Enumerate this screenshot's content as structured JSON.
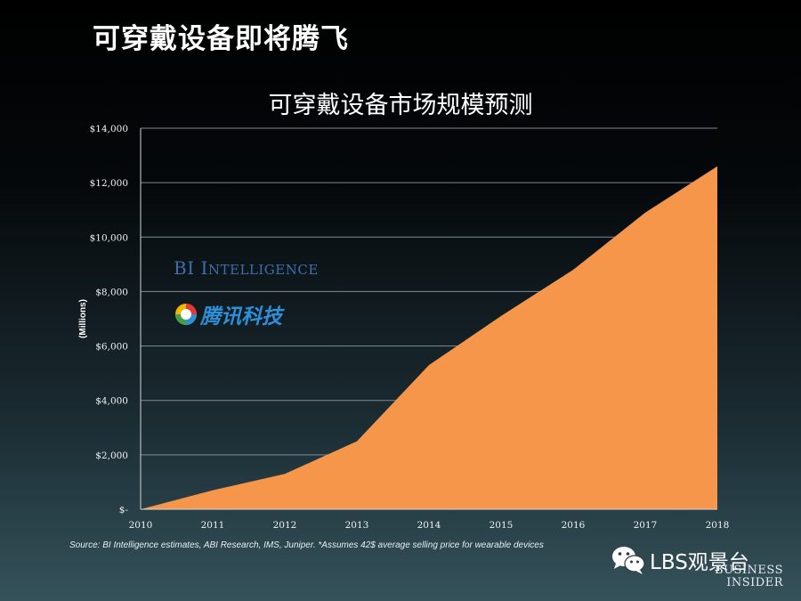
{
  "slide": {
    "title": "可穿戴设备即将腾飞"
  },
  "chart_data": {
    "type": "area",
    "title": "可穿戴设备市场规模预测",
    "xlabel": "",
    "ylabel": "(Millions)",
    "x": [
      2010,
      2011,
      2012,
      2013,
      2014,
      2015,
      2016,
      2017,
      2018
    ],
    "x_tick_labels": [
      "2010",
      "2011",
      "2012",
      "2013",
      "2014",
      "2015",
      "2016",
      "2017",
      "2018"
    ],
    "values": [
      0,
      700,
      1300,
      2500,
      5300,
      7100,
      8800,
      10900,
      12600
    ],
    "y_ticks": [
      0,
      2000,
      4000,
      6000,
      8000,
      10000,
      12000,
      14000
    ],
    "y_tick_labels": [
      "$-",
      "$2,000",
      "$4,000",
      "$6,000",
      "$8,000",
      "$10,000",
      "$12,000",
      "$14,000"
    ],
    "ylim": [
      0,
      14000
    ],
    "xlim": [
      2010,
      2018
    ],
    "grid": true,
    "fill_color": "#f5964a"
  },
  "logos": {
    "bi_intelligence_prefix": "BI I",
    "bi_intelligence_rest": "NTELLIGENCE",
    "tencent_tech": "腾讯科技"
  },
  "source": "Source: BI Intelligence estimates, ABI Research, IMS, Juniper. *Assumes 42$ average selling price for wearable devices",
  "watermark": {
    "wechat_account": "LBS观景台",
    "brand_line1": "BUSINESS",
    "brand_line2": "INSIDER"
  }
}
